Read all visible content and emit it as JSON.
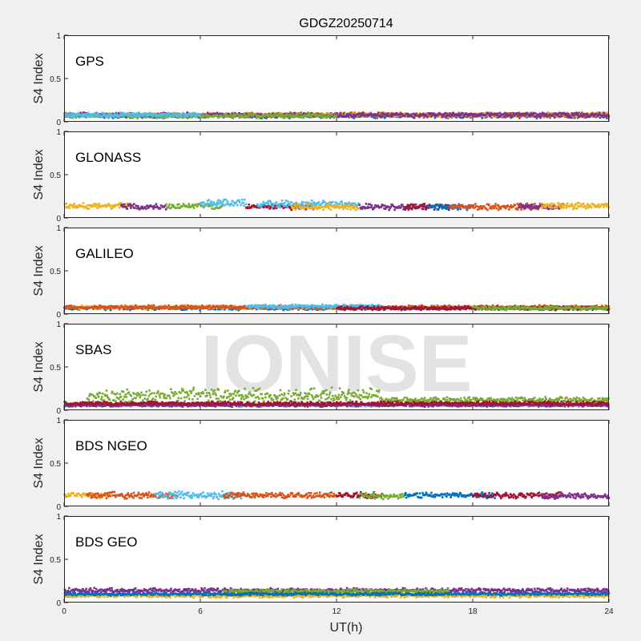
{
  "chart_data": {
    "type": "scatter",
    "title": "GDGZ20250714",
    "xlabel": "UT(h)",
    "ylabel": "S4 Index",
    "xlim": [
      0,
      24
    ],
    "ylim": [
      0,
      1
    ],
    "xticks": [
      "0",
      "6",
      "12",
      "18",
      "24"
    ],
    "yticks": [
      "0",
      "0.5",
      "1"
    ],
    "watermark": "IONISE",
    "colors": [
      "#0072BD",
      "#D95319",
      "#EDB120",
      "#7E2F8E",
      "#77AC30",
      "#4DBEEE",
      "#A2142F"
    ],
    "panels": [
      {
        "label": "GPS",
        "series": [
          {
            "color_index": 0,
            "t_range": [
              0,
              24
            ],
            "mean_s4": 0.07,
            "spread": 0.03
          },
          {
            "color_index": 1,
            "t_range": [
              8,
              24
            ],
            "mean_s4": 0.08,
            "spread": 0.03
          },
          {
            "color_index": 2,
            "t_range": [
              0,
              24
            ],
            "mean_s4": 0.08,
            "spread": 0.03
          },
          {
            "color_index": 3,
            "t_range": [
              0,
              24
            ],
            "mean_s4": 0.08,
            "spread": 0.03
          },
          {
            "color_index": 4,
            "t_range": [
              0,
              12
            ],
            "mean_s4": 0.07,
            "spread": 0.03
          },
          {
            "color_index": 5,
            "t_range": [
              0,
              6
            ],
            "mean_s4": 0.08,
            "spread": 0.03
          }
        ]
      },
      {
        "label": "GLONASS",
        "series": [
          {
            "color_index": 2,
            "t_range": [
              0,
              3
            ],
            "mean_s4": 0.14,
            "spread": 0.04
          },
          {
            "color_index": 3,
            "t_range": [
              2.5,
              4.5
            ],
            "mean_s4": 0.13,
            "spread": 0.04
          },
          {
            "color_index": 4,
            "t_range": [
              4.5,
              7
            ],
            "mean_s4": 0.14,
            "spread": 0.04
          },
          {
            "color_index": 5,
            "t_range": [
              6,
              8
            ],
            "mean_s4": 0.17,
            "spread": 0.05
          },
          {
            "color_index": 6,
            "t_range": [
              8,
              11
            ],
            "mean_s4": 0.13,
            "spread": 0.04
          },
          {
            "color_index": 5,
            "t_range": [
              8.5,
              13
            ],
            "mean_s4": 0.16,
            "spread": 0.05
          },
          {
            "color_index": 2,
            "t_range": [
              10,
              13
            ],
            "mean_s4": 0.13,
            "spread": 0.04
          },
          {
            "color_index": 3,
            "t_range": [
              13,
              16
            ],
            "mean_s4": 0.13,
            "spread": 0.04
          },
          {
            "color_index": 6,
            "t_range": [
              15,
              17
            ],
            "mean_s4": 0.13,
            "spread": 0.04
          },
          {
            "color_index": 0,
            "t_range": [
              16,
              18
            ],
            "mean_s4": 0.13,
            "spread": 0.04
          },
          {
            "color_index": 1,
            "t_range": [
              17,
              21
            ],
            "mean_s4": 0.13,
            "spread": 0.04
          },
          {
            "color_index": 3,
            "t_range": [
              20,
              22
            ],
            "mean_s4": 0.13,
            "spread": 0.04
          },
          {
            "color_index": 2,
            "t_range": [
              21,
              24
            ],
            "mean_s4": 0.14,
            "spread": 0.04
          }
        ]
      },
      {
        "label": "GALILEO",
        "series": [
          {
            "color_index": 0,
            "t_range": [
              0,
              24
            ],
            "mean_s4": 0.07,
            "spread": 0.025
          },
          {
            "color_index": 2,
            "t_range": [
              0,
              12
            ],
            "mean_s4": 0.08,
            "spread": 0.025
          },
          {
            "color_index": 1,
            "t_range": [
              0,
              24
            ],
            "mean_s4": 0.08,
            "spread": 0.025
          },
          {
            "color_index": 5,
            "t_range": [
              8,
              14
            ],
            "mean_s4": 0.09,
            "spread": 0.025
          },
          {
            "color_index": 6,
            "t_range": [
              12,
              24
            ],
            "mean_s4": 0.07,
            "spread": 0.025
          },
          {
            "color_index": 4,
            "t_range": [
              18,
              24
            ],
            "mean_s4": 0.07,
            "spread": 0.025
          }
        ]
      },
      {
        "label": "SBAS",
        "series": [
          {
            "color_index": 4,
            "t_range": [
              1,
              14
            ],
            "mean_s4": 0.17,
            "spread": 0.1
          },
          {
            "color_index": 4,
            "t_range": [
              14,
              24
            ],
            "mean_s4": 0.12,
            "spread": 0.04
          },
          {
            "color_index": 5,
            "t_range": [
              0,
              24
            ],
            "mean_s4": 0.06,
            "spread": 0.02
          },
          {
            "color_index": 3,
            "t_range": [
              0,
              24
            ],
            "mean_s4": 0.06,
            "spread": 0.02
          },
          {
            "color_index": 6,
            "t_range": [
              0,
              24
            ],
            "mean_s4": 0.08,
            "spread": 0.025
          }
        ]
      },
      {
        "label": "BDS NGEO",
        "series": [
          {
            "color_index": 2,
            "t_range": [
              0,
              2
            ],
            "mean_s4": 0.13,
            "spread": 0.04
          },
          {
            "color_index": 1,
            "t_range": [
              1,
              5
            ],
            "mean_s4": 0.13,
            "spread": 0.04
          },
          {
            "color_index": 5,
            "t_range": [
              4,
              8
            ],
            "mean_s4": 0.13,
            "spread": 0.05
          },
          {
            "color_index": 1,
            "t_range": [
              7,
              12
            ],
            "mean_s4": 0.13,
            "spread": 0.04
          },
          {
            "color_index": 6,
            "t_range": [
              12,
              14
            ],
            "mean_s4": 0.13,
            "spread": 0.04
          },
          {
            "color_index": 4,
            "t_range": [
              13,
              15
            ],
            "mean_s4": 0.12,
            "spread": 0.04
          },
          {
            "color_index": 0,
            "t_range": [
              15,
              19
            ],
            "mean_s4": 0.13,
            "spread": 0.04
          },
          {
            "color_index": 6,
            "t_range": [
              18,
              22
            ],
            "mean_s4": 0.13,
            "spread": 0.04
          },
          {
            "color_index": 3,
            "t_range": [
              21,
              24
            ],
            "mean_s4": 0.12,
            "spread": 0.04
          }
        ]
      },
      {
        "label": "BDS GEO",
        "series": [
          {
            "color_index": 3,
            "t_range": [
              0,
              24
            ],
            "mean_s4": 0.14,
            "spread": 0.03
          },
          {
            "color_index": 4,
            "t_range": [
              7,
              17
            ],
            "mean_s4": 0.13,
            "spread": 0.03
          },
          {
            "color_index": 2,
            "t_range": [
              0,
              24
            ],
            "mean_s4": 0.08,
            "spread": 0.025
          },
          {
            "color_index": 0,
            "t_range": [
              0,
              24
            ],
            "mean_s4": 0.1,
            "spread": 0.02
          }
        ]
      }
    ]
  }
}
